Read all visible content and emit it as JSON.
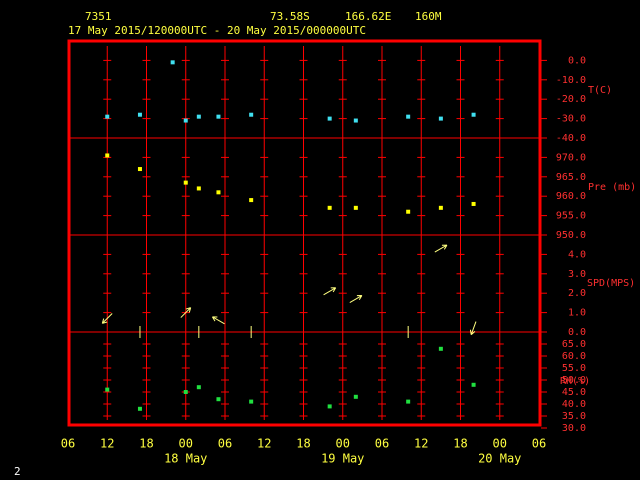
{
  "header": {
    "station": "7351",
    "lat": "73.58S",
    "lon": "166.62E",
    "elev": "160M",
    "period": "17 May 2015/120000UTC - 20 May 2015/000000UTC",
    "page": "2"
  },
  "chart_data": [
    {
      "type": "scatter",
      "ylabel": "T(C)",
      "color": "#40e0f0",
      "x": [
        12,
        17,
        22,
        24,
        26,
        29,
        34,
        46,
        50,
        58,
        63,
        68
      ],
      "values": [
        -29,
        -28,
        -1,
        -31,
        -29,
        -29,
        -28,
        -30,
        -31,
        -29,
        -30,
        -28
      ],
      "xlim": [
        6,
        78
      ],
      "ylim": [
        -40,
        10
      ],
      "yticks": [
        {
          "value": 0,
          "label": "0.0"
        },
        {
          "value": -10,
          "label": "-10.0"
        },
        {
          "value": -20,
          "label": "-20.0"
        },
        {
          "value": -30,
          "label": "-30.0"
        },
        {
          "value": -40,
          "label": "-40.0"
        }
      ]
    },
    {
      "type": "scatter",
      "ylabel": "Pre (mb)",
      "color": "#ffff00",
      "x": [
        12,
        17,
        24,
        26,
        29,
        34,
        46,
        50,
        58,
        63,
        68
      ],
      "values": [
        970.5,
        967,
        963.5,
        962,
        961,
        959,
        957,
        957,
        956,
        957,
        958
      ],
      "xlim": [
        6,
        78
      ],
      "ylim": [
        950,
        975
      ],
      "yticks": [
        {
          "value": 970,
          "label": "970.0"
        },
        {
          "value": 965,
          "label": "965.0"
        },
        {
          "value": 960,
          "label": "960.0"
        },
        {
          "value": 955,
          "label": "955.0"
        },
        {
          "value": 950,
          "label": "950.0"
        }
      ]
    },
    {
      "type": "wind",
      "ylabel": "SPD(MPS)",
      "color": "#ffff80",
      "x": [
        12,
        17,
        24,
        26,
        29,
        34,
        46,
        50,
        58,
        63,
        68
      ],
      "values": [
        0.7,
        0,
        1,
        0,
        0.6,
        0,
        2.1,
        1.7,
        0,
        4.3,
        0.2
      ],
      "directions": [
        225,
        null,
        45,
        null,
        300,
        null,
        60,
        60,
        null,
        60,
        200
      ],
      "xlim": [
        6,
        78
      ],
      "ylim": [
        0,
        5
      ],
      "yticks": [
        {
          "value": 4,
          "label": "4.0"
        },
        {
          "value": 3,
          "label": "3.0"
        },
        {
          "value": 2,
          "label": "2.0"
        },
        {
          "value": 1,
          "label": "1.0"
        },
        {
          "value": 0,
          "label": "0.0"
        }
      ]
    },
    {
      "type": "scatter",
      "ylabel": "RH(%)",
      "color": "#20e040",
      "x": [
        12,
        17,
        24,
        26,
        29,
        34,
        46,
        50,
        58,
        63,
        68
      ],
      "values": [
        46,
        38,
        45,
        47,
        42,
        41,
        39,
        43,
        41,
        63,
        48
      ],
      "xlim": [
        6,
        78
      ],
      "ylim": [
        30,
        70
      ],
      "yticks": [
        {
          "value": 65,
          "label": "65.0"
        },
        {
          "value": 60,
          "label": "60.0"
        },
        {
          "value": 55,
          "label": "55.0"
        },
        {
          "value": 50,
          "label": "50.0"
        },
        {
          "value": 45,
          "label": "45.0"
        },
        {
          "value": 40,
          "label": "40.0"
        },
        {
          "value": 35,
          "label": "35.0"
        },
        {
          "value": 30,
          "label": "30.0"
        }
      ],
      "xticks": [
        {
          "value": 6,
          "label": "06"
        },
        {
          "value": 12,
          "label": "12"
        },
        {
          "value": 18,
          "label": "18"
        },
        {
          "value": 24,
          "label": "00"
        },
        {
          "value": 30,
          "label": "06"
        },
        {
          "value": 36,
          "label": "12"
        },
        {
          "value": 42,
          "label": "18"
        },
        {
          "value": 48,
          "label": "00"
        },
        {
          "value": 54,
          "label": "06"
        },
        {
          "value": 60,
          "label": "12"
        },
        {
          "value": 66,
          "label": "18"
        },
        {
          "value": 72,
          "label": "00"
        },
        {
          "value": 78,
          "label": "06"
        }
      ],
      "xday_labels": [
        {
          "value": 24,
          "label": "18 May"
        },
        {
          "value": 48,
          "label": "19 May"
        },
        {
          "value": 72,
          "label": "20 May"
        }
      ]
    }
  ]
}
